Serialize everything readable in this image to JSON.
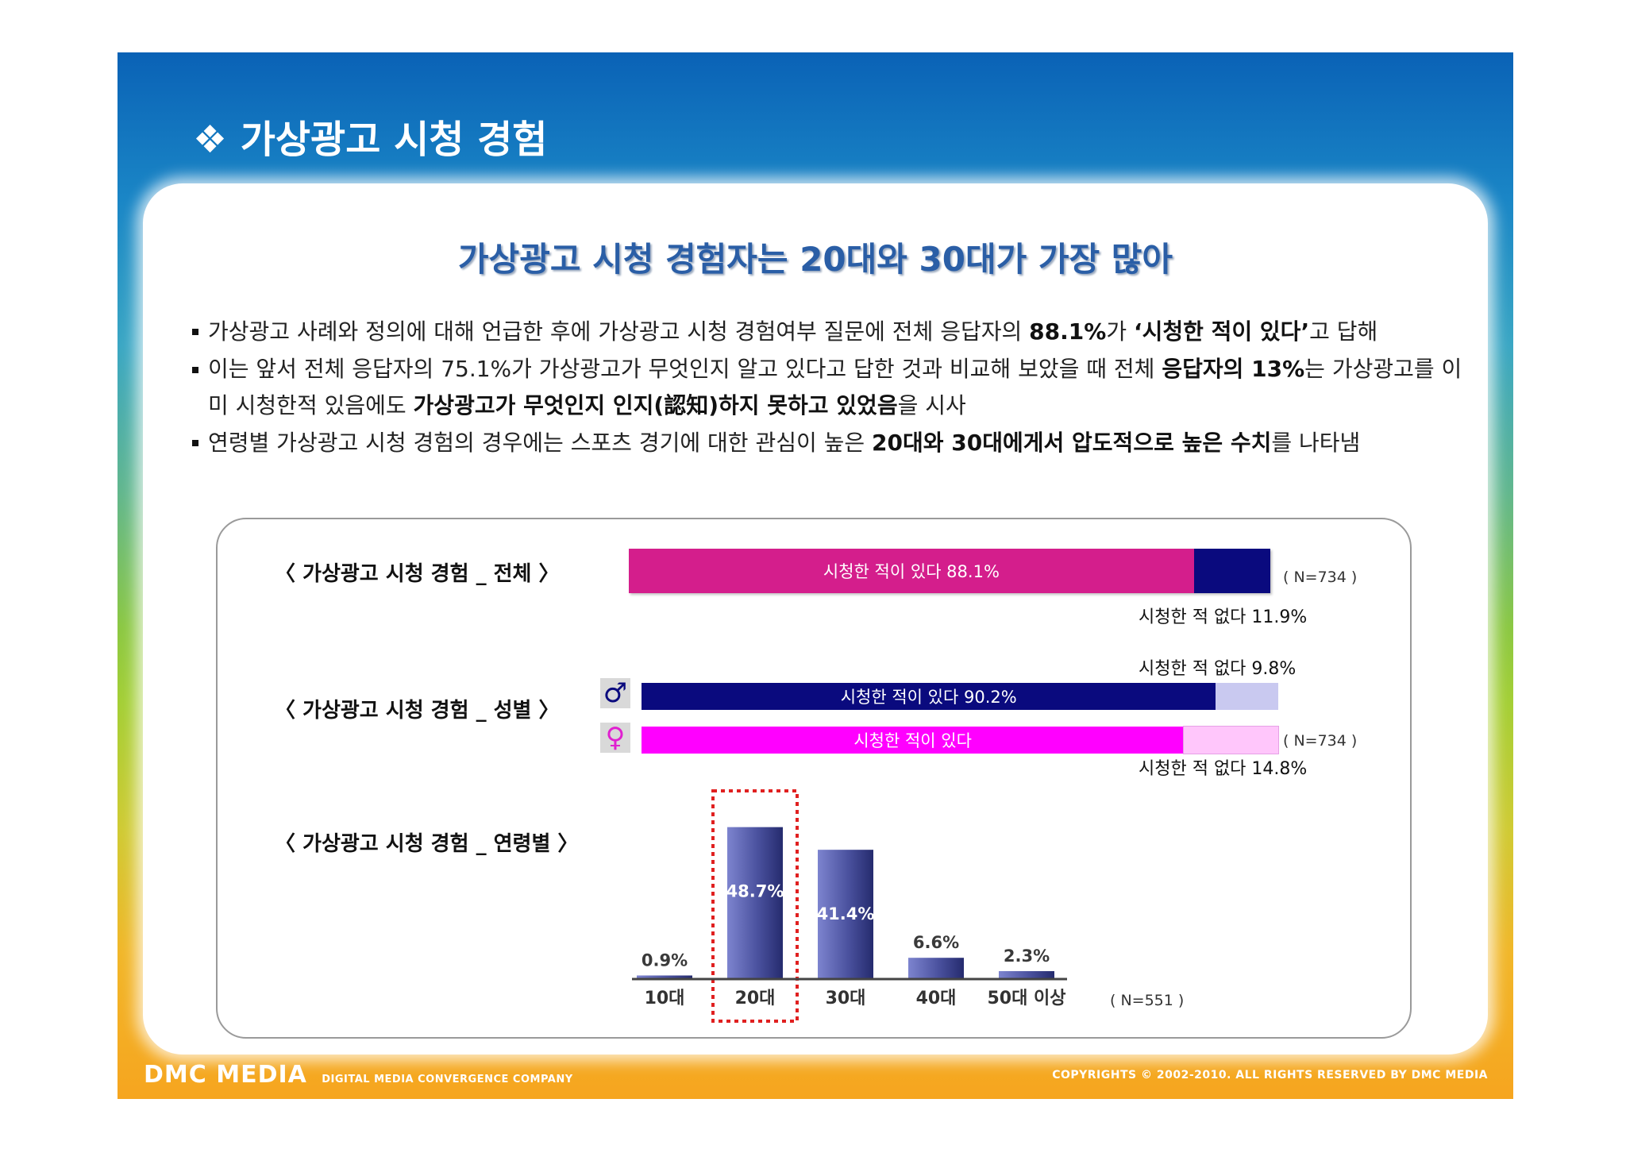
{
  "slide": {
    "title": "❖ 가상광고 시청 경험",
    "headline": "가상광고 시청 경험자는 20대와 30대가 가장 많아"
  },
  "bullets": [
    {
      "parts": [
        {
          "t": "가상광고 사례와 정의에 대해 언급한 후에 가상광고 시청 경험여부 질문에 전체 응답자의 ",
          "b": false
        },
        {
          "t": "88.1%",
          "b": true
        },
        {
          "t": "가 ",
          "b": false
        },
        {
          "t": "‘시청한 적이 있다’",
          "b": true
        },
        {
          "t": "고 답해",
          "b": false
        }
      ]
    },
    {
      "parts": [
        {
          "t": "이는 앞서 전체 응답자의 75.1%가 가상광고가 무엇인지 알고 있다고 답한 것과 비교해 보았을 때 전체 ",
          "b": false
        },
        {
          "t": "응답자의 13%",
          "b": true
        },
        {
          "t": "는 가상광고를 이미 시청한적 있음에도 ",
          "b": false
        },
        {
          "t": "가상광고가 무엇인지 인지(認知)하지 못하고 있었음",
          "b": true
        },
        {
          "t": "을 시사",
          "b": false
        }
      ]
    },
    {
      "parts": [
        {
          "t": "연령별 가상광고 시청 경험의 경우에는 스포츠 경기에 대한 관심이 높은 ",
          "b": false
        },
        {
          "t": "20대와 30대에게서 압도적으로 높은 수치",
          "b": true
        },
        {
          "t": "를 나타냄",
          "b": false
        }
      ]
    }
  ],
  "sections": {
    "total": {
      "label": "〈 가상광고 시청 경험 _ 전체 〉",
      "yes_label": "시청한 적이 있다  88.1%",
      "yes_value": 88.1,
      "no_label": "시청한 적 없다 11.9%",
      "no_value": 11.9,
      "n": "( N=734 )",
      "colors": {
        "yes": "#d41e8c",
        "no": "#0a0a7e"
      }
    },
    "gender": {
      "label": "〈 가상광고 시청 경험 _ 성별 〉",
      "male_symbol": "♂",
      "female_symbol": "♀",
      "male_yes_label": "시청한 적이 있다  90.2%",
      "male_yes_value": 90.2,
      "male_no_label": "시청한 적 없다 9.8%",
      "male_no_value": 9.8,
      "female_yes_label": "시청한 적이  있다",
      "female_yes_value": 85.2,
      "female_no_label": "시청한 적 없다 14.8%",
      "female_no_value": 14.8,
      "n": "( N=734 )",
      "colors": {
        "male_yes": "#0a0a7e",
        "male_no": "#c9c9f0",
        "female_yes": "#ff00ff",
        "female_no": "#ffc6fb"
      }
    },
    "age": {
      "label": "〈 가상광고 시청 경험 _ 연령별 〉",
      "n": "( N=551 )"
    }
  },
  "chart_data": {
    "type": "bar",
    "categories": [
      "10대",
      "20대",
      "30대",
      "40대",
      "50대 이상"
    ],
    "values": [
      0.9,
      48.7,
      41.4,
      6.6,
      2.3
    ],
    "value_labels": [
      "0.9%",
      "48.7%",
      "41.4%",
      "6.6%",
      "2.3%"
    ],
    "highlight_category": "20대",
    "colors": {
      "bar": "#5057a8",
      "highlight_box": "#e02020"
    },
    "ylim": [
      0,
      55
    ]
  },
  "footer": {
    "logo": "DMC MEDIA",
    "tagline": "DIGITAL MEDIA CONVERGENCE COMPANY",
    "copyright": "COPYRIGHTS © 2002-2010. ALL RIGHTS RESERVED BY DMC MEDIA"
  }
}
